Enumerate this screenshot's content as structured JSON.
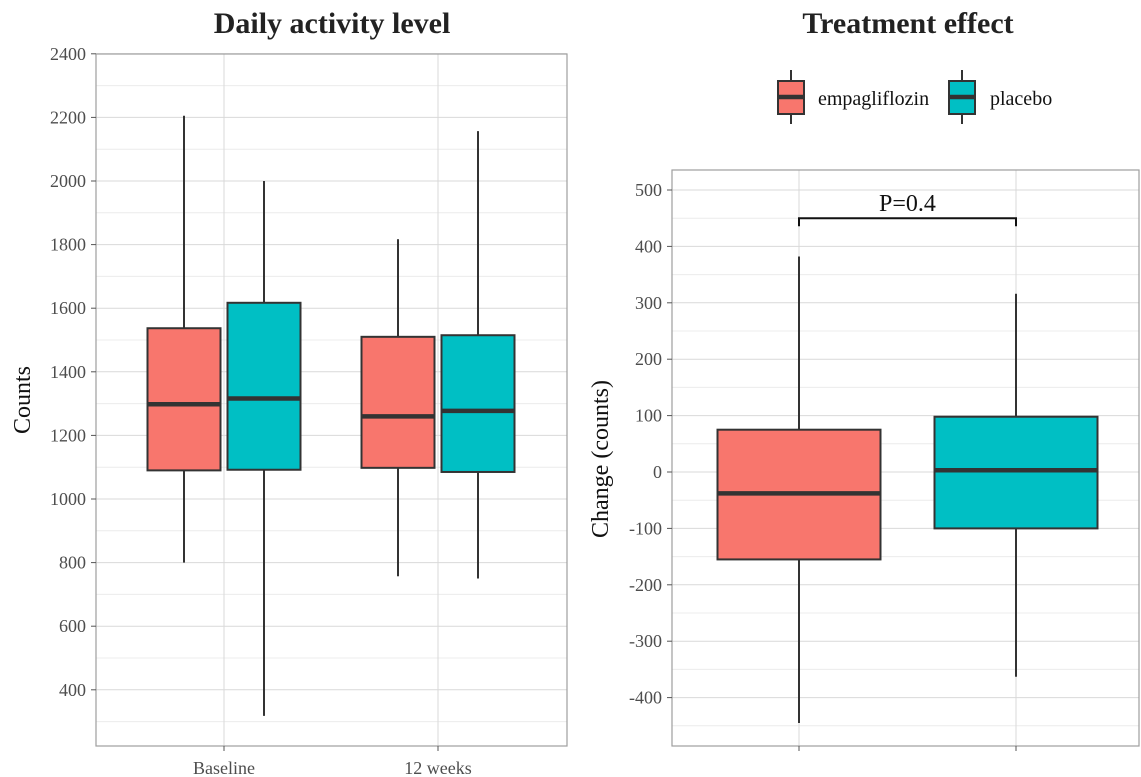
{
  "colors": {
    "empagliflozin": "#F8766D",
    "placebo": "#00BFC4"
  },
  "legend": [
    {
      "label": "empagliflozin",
      "color": "#F8766D"
    },
    {
      "label": "placebo",
      "color": "#00BFC4"
    }
  ],
  "chart_data": [
    {
      "type": "boxplot",
      "title": "Daily activity level",
      "xlabel": "",
      "ylabel": "Counts",
      "ylim": [
        250,
        2400
      ],
      "yticks": [
        400,
        600,
        800,
        1000,
        1200,
        1400,
        1600,
        1800,
        2000,
        2200,
        2400
      ],
      "categories": [
        "Baseline",
        "12 weeks"
      ],
      "grid": true,
      "series": [
        {
          "name": "empagliflozin",
          "values": [
            {
              "min": 800,
              "q1": 1090,
              "median": 1298,
              "q3": 1537,
              "max": 2205
            },
            {
              "min": 757,
              "q1": 1098,
              "median": 1260,
              "q3": 1510,
              "max": 1817
            }
          ]
        },
        {
          "name": "placebo",
          "values": [
            {
              "min": 318,
              "q1": 1092,
              "median": 1316,
              "q3": 1617,
              "max": 2000
            },
            {
              "min": 750,
              "q1": 1085,
              "median": 1277,
              "q3": 1515,
              "max": 2157
            }
          ]
        }
      ]
    },
    {
      "type": "boxplot",
      "title": "Treatment effect",
      "xlabel": "",
      "ylabel": "Change (counts)",
      "ylim": [
        -480,
        510
      ],
      "yticks": [
        -400,
        -300,
        -200,
        -100,
        0,
        100,
        200,
        300,
        400,
        500
      ],
      "categories": [
        "",
        ""
      ],
      "grid": true,
      "legend_position": "top",
      "series": [
        {
          "name": "empagliflozin",
          "values": [
            {
              "min": -445,
              "q1": -155,
              "median": -38,
              "q3": 75,
              "max": 382
            }
          ]
        },
        {
          "name": "placebo",
          "values": [
            {
              "min": -363,
              "q1": -100,
              "median": 3,
              "q3": 98,
              "max": 316
            }
          ]
        }
      ],
      "annotation": {
        "text": "P=0.4",
        "y": 450
      }
    }
  ]
}
